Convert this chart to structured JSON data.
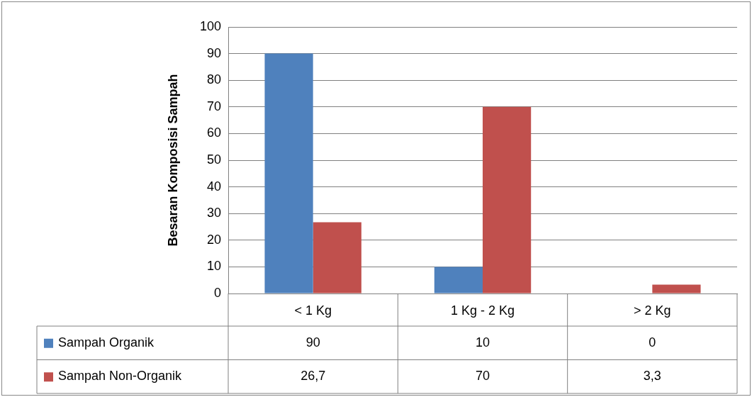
{
  "chart_data": {
    "type": "bar",
    "ylabel": "Besaran Komposisi Sampah",
    "categories": [
      "< 1 Kg",
      "1 Kg - 2 Kg",
      "> 2 Kg"
    ],
    "series": [
      {
        "name": "Sampah Organik",
        "color": "#4f81bd",
        "values": [
          90,
          10,
          0
        ],
        "value_labels": [
          "90",
          "10",
          "0"
        ]
      },
      {
        "name": "Sampah Non-Organik",
        "color": "#c0504d",
        "values": [
          26.7,
          70,
          3.3
        ],
        "value_labels": [
          "26,7",
          "70",
          "3,3"
        ]
      }
    ],
    "ylim": [
      0,
      100
    ],
    "yticks": [
      0,
      10,
      20,
      30,
      40,
      50,
      60,
      70,
      80,
      90,
      100
    ],
    "grid": "y",
    "legend": "bottom"
  }
}
